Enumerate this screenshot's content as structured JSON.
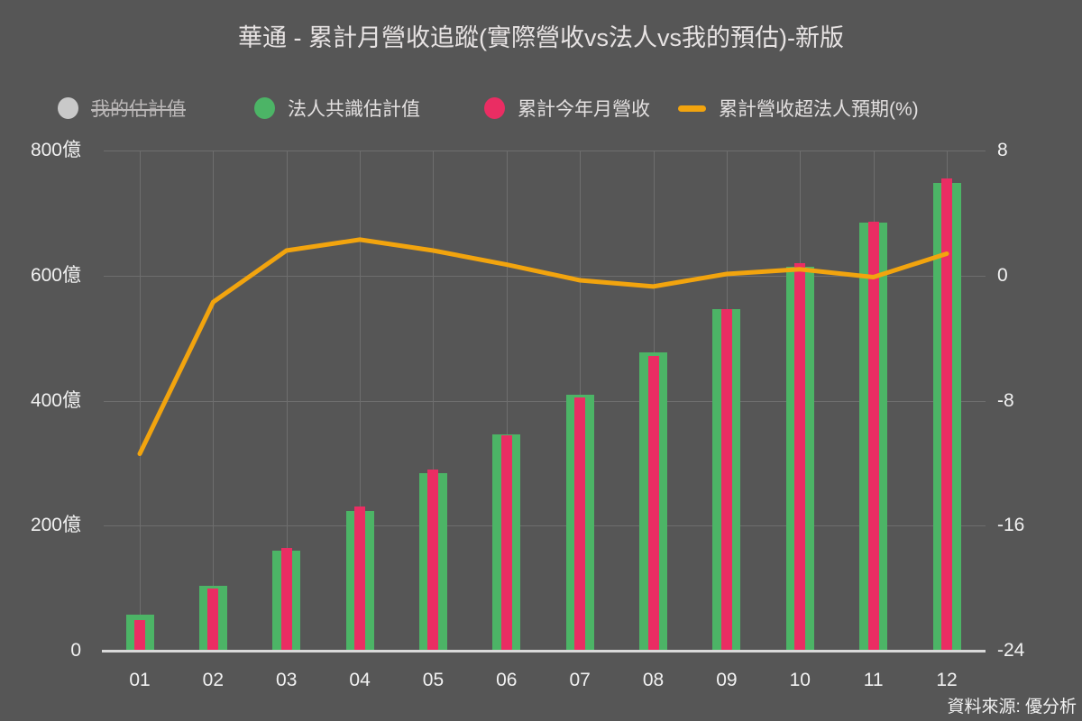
{
  "title": "華通 - 累計月營收追蹤(實際營收vs法人vs我的預估)-新版",
  "source_note": "資料來源: 優分析",
  "colors": {
    "background": "#565656",
    "title_text": "#e7e3e3",
    "legend_text": "#e3e0e0",
    "disabled_text": "#bbb8b8",
    "tick_text": "#f1f1f1",
    "grid": "#6e6e6e",
    "axis_line": "#d9d9d9",
    "gray": "#c9c9c9",
    "green": "#4cb466",
    "pink": "#ea2d63",
    "orange": "#f2a40e"
  },
  "legend": [
    {
      "label": "我的估計值",
      "marker": "circle",
      "color_key": "gray",
      "disabled": true
    },
    {
      "label": "法人共識估計值",
      "marker": "circle",
      "color_key": "green",
      "disabled": false
    },
    {
      "label": "累計今年月營收",
      "marker": "circle",
      "color_key": "pink",
      "disabled": false
    },
    {
      "label": "累計營收超法人預期(%)",
      "marker": "dash",
      "color_key": "orange",
      "disabled": false
    }
  ],
  "chart_data": {
    "type": "combo-bar-line",
    "title": "華通 - 累計月營收追蹤(實際營收vs法人vs我的預估)-新版",
    "categories": [
      "01",
      "02",
      "03",
      "04",
      "05",
      "06",
      "07",
      "08",
      "09",
      "10",
      "11",
      "12"
    ],
    "left_axis": {
      "unit": "億",
      "min": 0,
      "max": 800,
      "ticks": [
        "800億",
        "600億",
        "400億",
        "200億",
        "0"
      ]
    },
    "right_axis": {
      "min": -24,
      "max": 8,
      "ticks": [
        "8",
        "0",
        "-8",
        "-16",
        "-24"
      ]
    },
    "grid": true,
    "legend_position": "top",
    "series": [
      {
        "key": "my-estimate",
        "name": "我的估計值",
        "type": "bar",
        "axis": "left",
        "color_key": "gray",
        "visible": false,
        "values": []
      },
      {
        "key": "consensus",
        "name": "法人共識估計值",
        "type": "bar",
        "axis": "left",
        "color_key": "green",
        "visible": true,
        "values": [
          58,
          104,
          160,
          223,
          284,
          346,
          409,
          477,
          546,
          614,
          684,
          748
        ]
      },
      {
        "key": "actual",
        "name": "累計今年月營收",
        "type": "bar",
        "axis": "left",
        "color_key": "pink",
        "visible": true,
        "values": [
          49,
          100,
          164,
          230,
          290,
          344,
          405,
          471,
          547,
          620,
          686,
          756
        ]
      },
      {
        "key": "surprise",
        "name": "累計營收超法人預期(%)",
        "type": "line",
        "axis": "right",
        "color_key": "orange",
        "visible": true,
        "values": [
          -11.4,
          -1.7,
          1.6,
          2.3,
          1.6,
          0.7,
          -0.3,
          -0.7,
          0.1,
          0.4,
          -0.1,
          1.4
        ]
      }
    ]
  }
}
